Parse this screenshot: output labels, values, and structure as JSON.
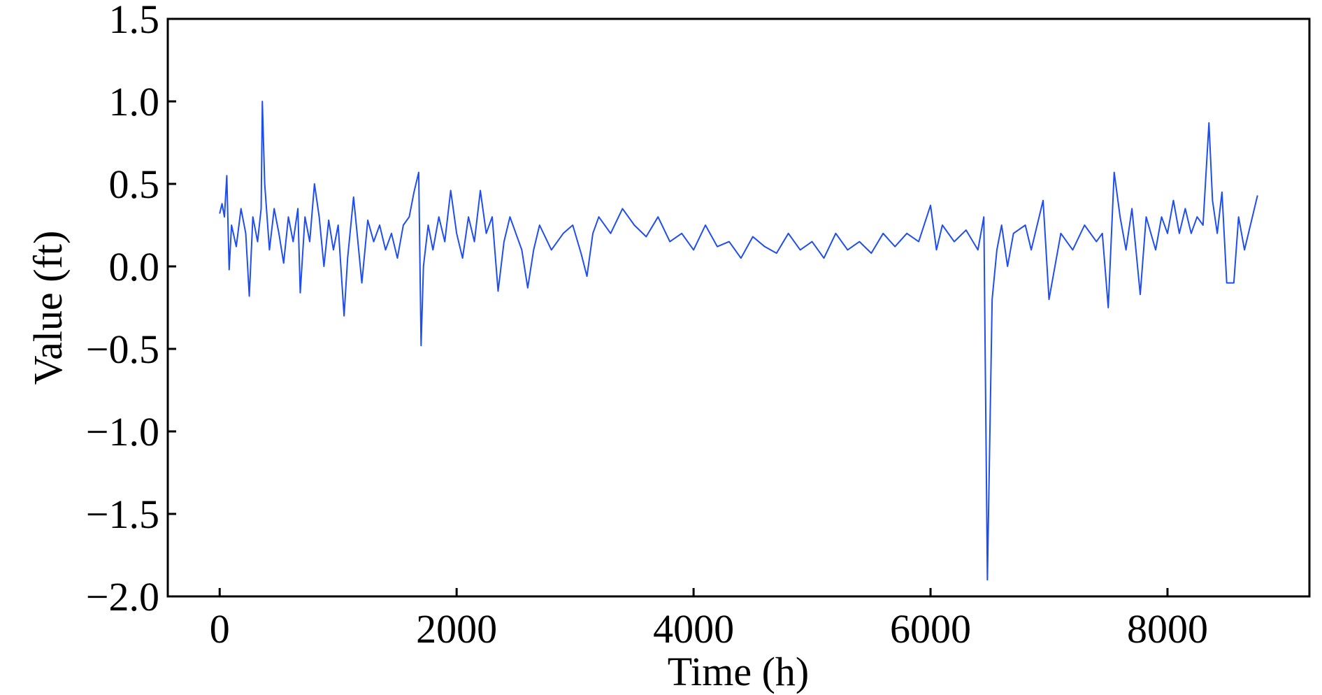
{
  "chart_data": {
    "type": "line",
    "xlabel": "Time (h)",
    "ylabel": "Value (ft)",
    "x": [
      0,
      20,
      40,
      60,
      80,
      100,
      140,
      180,
      220,
      250,
      280,
      320,
      350,
      360,
      380,
      420,
      460,
      500,
      540,
      580,
      620,
      660,
      680,
      720,
      760,
      800,
      840,
      880,
      920,
      960,
      1000,
      1050,
      1080,
      1130,
      1160,
      1200,
      1250,
      1300,
      1350,
      1400,
      1450,
      1500,
      1550,
      1600,
      1640,
      1680,
      1700,
      1720,
      1760,
      1800,
      1850,
      1900,
      1950,
      2000,
      2050,
      2100,
      2150,
      2200,
      2250,
      2300,
      2350,
      2400,
      2450,
      2500,
      2550,
      2600,
      2650,
      2700,
      2800,
      2900,
      2980,
      3050,
      3100,
      3150,
      3200,
      3300,
      3400,
      3500,
      3600,
      3700,
      3800,
      3900,
      4000,
      4100,
      4200,
      4300,
      4400,
      4500,
      4600,
      4700,
      4800,
      4900,
      5000,
      5100,
      5200,
      5300,
      5400,
      5500,
      5600,
      5700,
      5800,
      5900,
      6000,
      6050,
      6100,
      6200,
      6300,
      6400,
      6450,
      6480,
      6520,
      6560,
      6600,
      6650,
      6700,
      6800,
      6850,
      6950,
      7000,
      7050,
      7100,
      7200,
      7300,
      7400,
      7450,
      7500,
      7550,
      7600,
      7650,
      7700,
      7770,
      7820,
      7900,
      7950,
      8000,
      8050,
      8100,
      8150,
      8200,
      8250,
      8300,
      8350,
      8380,
      8420,
      8460,
      8500,
      8560,
      8600,
      8650,
      8700,
      8760
    ],
    "series": [
      {
        "name": "Value",
        "color": "#1f4ef0",
        "values": [
          0.32,
          0.38,
          0.3,
          0.55,
          -0.02,
          0.25,
          0.12,
          0.35,
          0.2,
          -0.18,
          0.3,
          0.15,
          0.35,
          1.0,
          0.5,
          0.1,
          0.35,
          0.2,
          0.02,
          0.3,
          0.15,
          0.35,
          -0.16,
          0.3,
          0.15,
          0.5,
          0.3,
          0.0,
          0.28,
          0.1,
          0.25,
          -0.3,
          0.05,
          0.42,
          0.2,
          -0.1,
          0.28,
          0.15,
          0.25,
          0.1,
          0.2,
          0.05,
          0.25,
          0.3,
          0.45,
          0.57,
          -0.48,
          0.0,
          0.25,
          0.1,
          0.3,
          0.15,
          0.46,
          0.2,
          0.05,
          0.3,
          0.15,
          0.46,
          0.2,
          0.3,
          -0.15,
          0.15,
          0.3,
          0.2,
          0.1,
          -0.13,
          0.1,
          0.25,
          0.1,
          0.2,
          0.25,
          0.08,
          -0.06,
          0.2,
          0.3,
          0.2,
          0.35,
          0.25,
          0.18,
          0.3,
          0.15,
          0.2,
          0.1,
          0.25,
          0.12,
          0.15,
          0.05,
          0.18,
          0.12,
          0.08,
          0.2,
          0.1,
          0.15,
          0.05,
          0.2,
          0.1,
          0.15,
          0.08,
          0.2,
          0.12,
          0.2,
          0.15,
          0.37,
          0.1,
          0.25,
          0.15,
          0.22,
          0.1,
          0.3,
          -1.9,
          -0.2,
          0.1,
          0.25,
          0.0,
          0.2,
          0.25,
          0.1,
          0.4,
          -0.2,
          0.0,
          0.2,
          0.1,
          0.25,
          0.15,
          0.2,
          -0.25,
          0.57,
          0.3,
          0.1,
          0.35,
          -0.17,
          0.3,
          0.1,
          0.3,
          0.2,
          0.4,
          0.2,
          0.35,
          0.2,
          0.3,
          0.25,
          0.87,
          0.4,
          0.2,
          0.45,
          -0.1,
          -0.1,
          0.3,
          0.1,
          0.25,
          0.43
        ]
      }
    ],
    "xlim": [
      -438,
      9198
    ],
    "xticks": [
      0,
      2000,
      4000,
      6000,
      8000
    ],
    "ylim": [
      -2.0,
      1.5
    ],
    "yticks": [
      {
        "value": -2.0,
        "label": "−2.0"
      },
      {
        "value": -1.5,
        "label": "−1.5"
      },
      {
        "value": -1.0,
        "label": "−1.0"
      },
      {
        "value": -0.5,
        "label": "−0.5"
      },
      {
        "value": 0.0,
        "label": "0.0"
      },
      0.5,
      {
        "value": 1.0,
        "label": "1.0"
      },
      1.5
    ],
    "grid": false
  }
}
